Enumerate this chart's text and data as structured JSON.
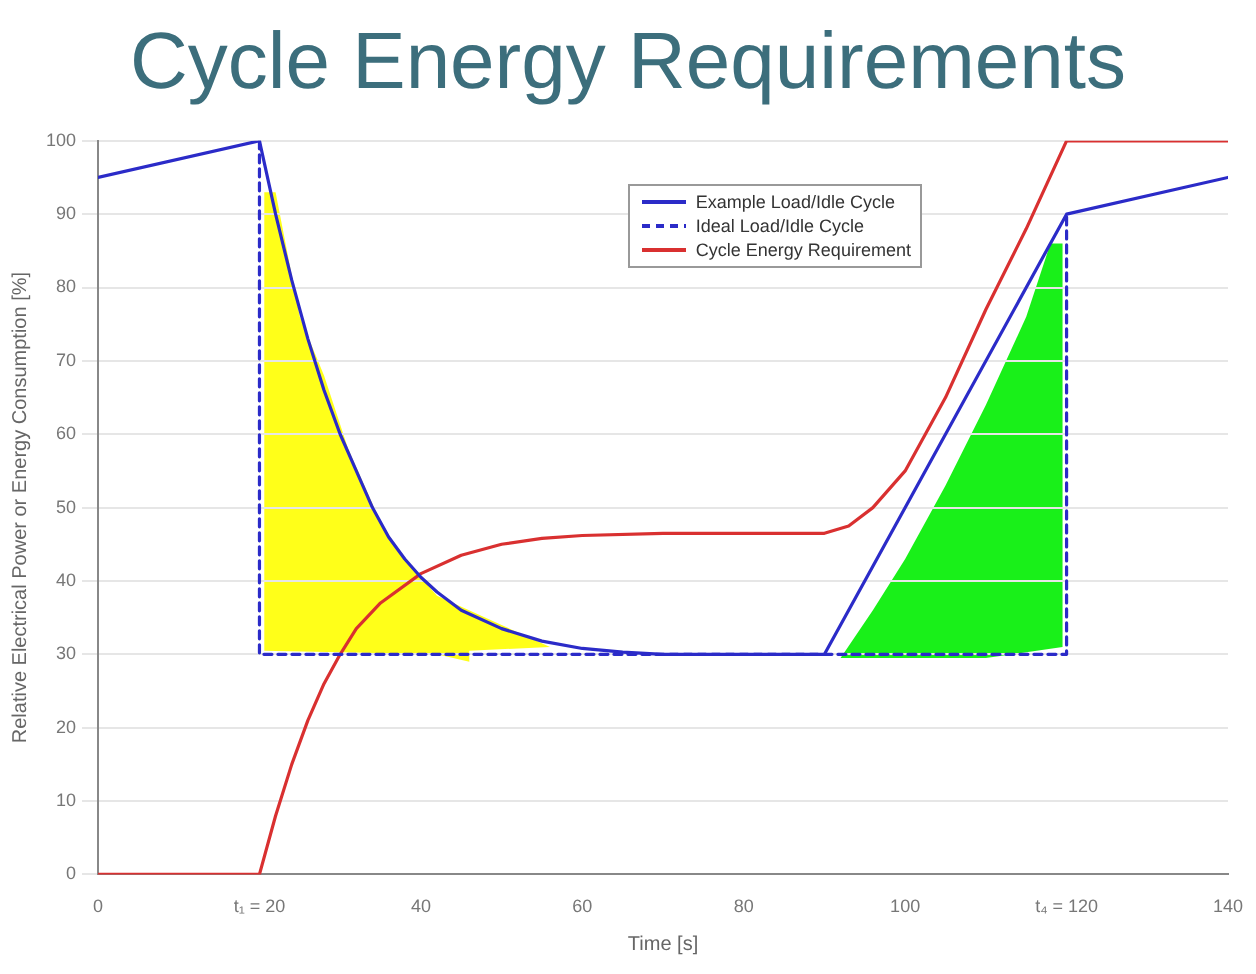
{
  "chart_data": {
    "type": "line",
    "title": "Cycle Energy Requirements",
    "xlabel": "Time [s]",
    "ylabel": "Relative Electrical Power or Energy Consumption [%]",
    "xlim": [
      0,
      140
    ],
    "xticks": [
      0,
      {
        "value": 20,
        "label": "t₁ = 20"
      },
      40,
      60,
      80,
      100,
      {
        "value": 120,
        "label": "t₄ = 120"
      },
      140
    ],
    "ylim": [
      0,
      100
    ],
    "yticks": [
      0,
      10,
      20,
      30,
      40,
      50,
      60,
      70,
      80,
      90,
      100
    ],
    "grid": "y",
    "legend": "top right",
    "marker": "none",
    "series": [
      {
        "name": "Example Load/Idle Cycle",
        "color": "#2b2bc8",
        "line_style": "solid",
        "x": [
          0,
          20,
          22,
          24,
          26,
          28,
          30,
          32,
          34,
          36,
          38,
          40,
          42,
          45,
          50,
          55,
          60,
          65,
          70,
          90,
          120,
          140
        ],
        "values": [
          95,
          100,
          90,
          81,
          73,
          66,
          60,
          55,
          50,
          46,
          43,
          40.5,
          38.5,
          36,
          33.5,
          31.8,
          30.8,
          30.3,
          30,
          30,
          90,
          95
        ]
      },
      {
        "name": "Ideal Load/Idle Cycle",
        "color": "#2b2bc8",
        "line_style": "dashed",
        "x": [
          20,
          20,
          120,
          120
        ],
        "values": [
          100,
          30,
          30,
          90
        ]
      },
      {
        "name": "Cycle Energy Requirement",
        "color": "#d93030",
        "line_style": "solid",
        "x": [
          0,
          20,
          22,
          24,
          26,
          28,
          30,
          32,
          35,
          40,
          45,
          50,
          55,
          60,
          70,
          90,
          93,
          96,
          100,
          105,
          110,
          115,
          120,
          140
        ],
        "values": [
          0,
          0,
          8,
          15,
          21,
          26,
          30,
          33.5,
          37,
          41,
          43.5,
          45,
          45.8,
          46.2,
          46.5,
          46.5,
          47.5,
          50,
          55,
          65,
          77,
          88,
          100,
          100
        ]
      }
    ]
  }
}
